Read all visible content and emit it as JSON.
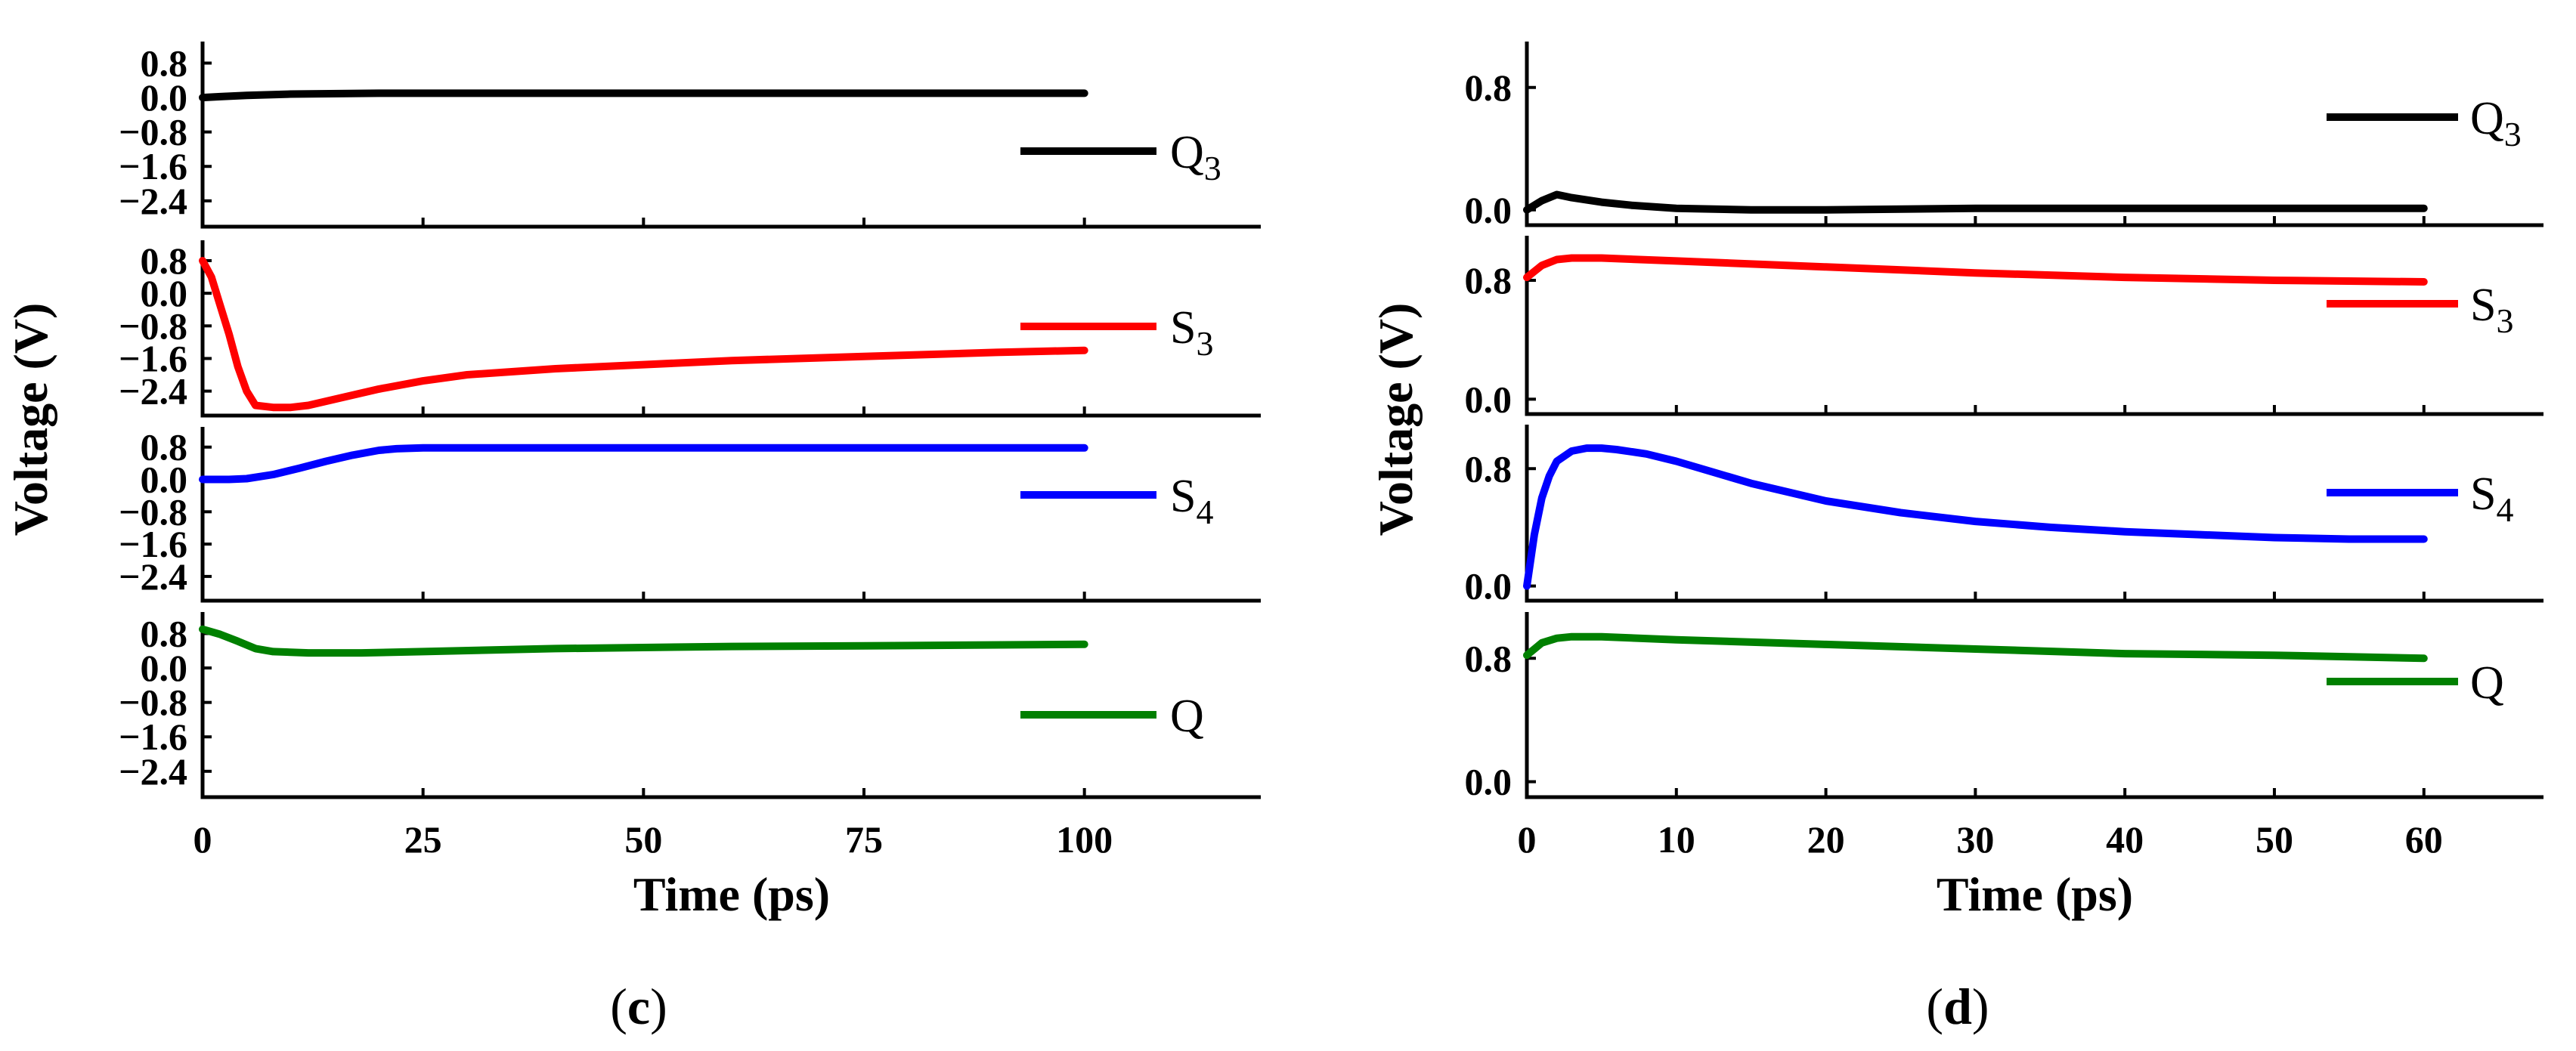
{
  "colors": {
    "Q3": "#000000",
    "S3": "#ff0000",
    "S4": "#0000ff",
    "Q": "#008000"
  },
  "chart_data": [
    {
      "type": "line",
      "panel_label": "(c)",
      "xlabel": "Time (ps)",
      "ylabel": "Voltage (V)",
      "xlim": [
        0,
        120
      ],
      "xticks": [
        0,
        25,
        50,
        75,
        100
      ],
      "xtick_labels": [
        "0",
        "25",
        "50",
        "75",
        "100"
      ],
      "stacked_subplots": [
        {
          "series_name": "Q3",
          "legend_main": "Q",
          "legend_sub": "3",
          "color": "#000000",
          "ylim": [
            -3.0,
            1.3
          ],
          "yticks": [
            0.8,
            0.0,
            -0.8,
            -1.6,
            -2.4
          ],
          "ytick_labels": [
            "0.8",
            "0.0",
            "−0.8",
            "−1.6",
            "−2.4"
          ],
          "x": [
            0,
            2,
            5,
            10,
            20,
            30,
            50,
            75,
            100
          ],
          "y": [
            0.0,
            0.02,
            0.05,
            0.08,
            0.1,
            0.1,
            0.1,
            0.1,
            0.1
          ]
        },
        {
          "series_name": "S3",
          "legend_main": "S",
          "legend_sub": "3",
          "color": "#ff0000",
          "ylim": [
            -3.0,
            1.3
          ],
          "yticks": [
            0.8,
            0.0,
            -0.8,
            -1.6,
            -2.4
          ],
          "ytick_labels": [
            "0.8",
            "0.0",
            "−0.8",
            "−1.6",
            "−2.4"
          ],
          "x": [
            0,
            1,
            2,
            3,
            4,
            5,
            6,
            8,
            10,
            12,
            15,
            20,
            25,
            30,
            40,
            50,
            60,
            75,
            90,
            100
          ],
          "y": [
            0.8,
            0.4,
            -0.3,
            -1.0,
            -1.8,
            -2.4,
            -2.75,
            -2.8,
            -2.8,
            -2.75,
            -2.6,
            -2.35,
            -2.15,
            -2.0,
            -1.85,
            -1.75,
            -1.65,
            -1.55,
            -1.45,
            -1.4
          ]
        },
        {
          "series_name": "S4",
          "legend_main": "S",
          "legend_sub": "4",
          "color": "#0000ff",
          "ylim": [
            -3.0,
            1.3
          ],
          "yticks": [
            0.8,
            0.0,
            -0.8,
            -1.6,
            -2.4
          ],
          "ytick_labels": [
            "0.8",
            "0.0",
            "−0.8",
            "−1.6",
            "−2.4"
          ],
          "x": [
            0,
            3,
            5,
            8,
            11,
            14,
            17,
            20,
            22,
            25,
            50,
            75,
            100
          ],
          "y": [
            0.0,
            0.0,
            0.02,
            0.12,
            0.28,
            0.45,
            0.6,
            0.72,
            0.76,
            0.78,
            0.78,
            0.78,
            0.78
          ]
        },
        {
          "series_name": "Q",
          "legend_main": "Q",
          "legend_sub": "",
          "color": "#008000",
          "ylim": [
            -3.0,
            1.3
          ],
          "yticks": [
            0.8,
            0.0,
            -0.8,
            -1.6,
            -2.4
          ],
          "ytick_labels": [
            "0.8",
            "0.0",
            "−0.8",
            "−1.6",
            "−2.4"
          ],
          "x": [
            0,
            2,
            4,
            6,
            8,
            12,
            18,
            25,
            40,
            60,
            80,
            100
          ],
          "y": [
            0.9,
            0.78,
            0.62,
            0.45,
            0.38,
            0.35,
            0.35,
            0.38,
            0.45,
            0.5,
            0.52,
            0.55
          ]
        }
      ]
    },
    {
      "type": "line",
      "panel_label": "(d)",
      "xlabel": "Time (ps)",
      "ylabel": "Voltage (V)",
      "xlim": [
        0,
        68
      ],
      "xticks": [
        0,
        10,
        20,
        30,
        40,
        50,
        60
      ],
      "xtick_labels": [
        "0",
        "10",
        "20",
        "30",
        "40",
        "50",
        "60"
      ],
      "stacked_subplots": [
        {
          "series_name": "Q3",
          "legend_main": "Q",
          "legend_sub": "3",
          "color": "#000000",
          "ylim": [
            -0.1,
            1.1
          ],
          "yticks": [
            0.8,
            0.0
          ],
          "ytick_labels": [
            "0.8",
            "0.0"
          ],
          "x": [
            0,
            1,
            2,
            3,
            5,
            7,
            10,
            15,
            20,
            30,
            40,
            50,
            60
          ],
          "y": [
            0.0,
            0.06,
            0.1,
            0.08,
            0.05,
            0.03,
            0.01,
            0.0,
            0.0,
            0.01,
            0.01,
            0.01,
            0.01
          ]
        },
        {
          "series_name": "S3",
          "legend_main": "S",
          "legend_sub": "3",
          "color": "#ff0000",
          "ylim": [
            -0.1,
            1.1
          ],
          "yticks": [
            0.8,
            0.0
          ],
          "ytick_labels": [
            "0.8",
            "0.0"
          ],
          "x": [
            0,
            1,
            2,
            3,
            5,
            10,
            20,
            30,
            40,
            50,
            60
          ],
          "y": [
            0.82,
            0.9,
            0.94,
            0.95,
            0.95,
            0.93,
            0.89,
            0.85,
            0.82,
            0.8,
            0.79
          ]
        },
        {
          "series_name": "S4",
          "legend_main": "S",
          "legend_sub": "4",
          "color": "#0000ff",
          "ylim": [
            -0.1,
            1.1
          ],
          "yticks": [
            0.8,
            0.0
          ],
          "ytick_labels": [
            "0.8",
            "0.0"
          ],
          "x": [
            0,
            0.5,
            1,
            1.5,
            2,
            3,
            4,
            5,
            6,
            8,
            10,
            15,
            20,
            25,
            30,
            35,
            40,
            45,
            50,
            55,
            60
          ],
          "y": [
            0.0,
            0.35,
            0.6,
            0.75,
            0.85,
            0.92,
            0.94,
            0.94,
            0.93,
            0.9,
            0.85,
            0.7,
            0.58,
            0.5,
            0.44,
            0.4,
            0.37,
            0.35,
            0.33,
            0.32,
            0.32
          ]
        },
        {
          "series_name": "Q",
          "legend_main": "Q",
          "legend_sub": "",
          "color": "#008000",
          "ylim": [
            -0.1,
            1.1
          ],
          "yticks": [
            0.8,
            0.0
          ],
          "ytick_labels": [
            "0.8",
            "0.0"
          ],
          "x": [
            0,
            1,
            2,
            3,
            5,
            10,
            20,
            30,
            40,
            50,
            60
          ],
          "y": [
            0.82,
            0.9,
            0.93,
            0.94,
            0.94,
            0.92,
            0.89,
            0.86,
            0.83,
            0.82,
            0.8
          ]
        }
      ]
    }
  ]
}
